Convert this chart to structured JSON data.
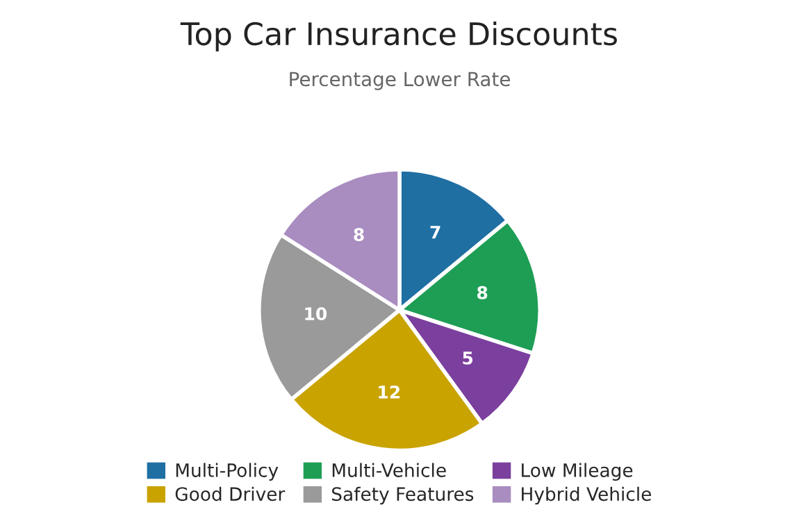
{
  "chart_data": {
    "type": "pie",
    "title": "Top Car Insurance Discounts",
    "subtitle": "Percentage Lower Rate",
    "categories": [
      "Multi-Policy",
      "Multi-Vehicle",
      "Low Mileage",
      "Good Driver",
      "Safety Features",
      "Hybrid Vehicle"
    ],
    "values": [
      7,
      8,
      5,
      12,
      10,
      8
    ],
    "colors": [
      "#1f6fa3",
      "#1e9e55",
      "#7b3f9e",
      "#c9a300",
      "#9a9a9a",
      "#a98cc0"
    ],
    "data_labels": true,
    "legend": "bottom"
  }
}
